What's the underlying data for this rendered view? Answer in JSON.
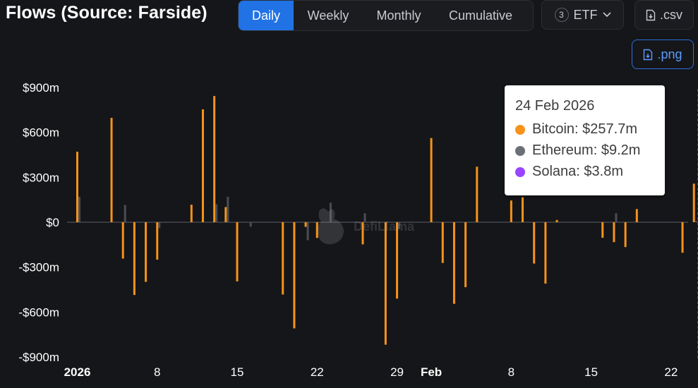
{
  "header": {
    "title": "Flows (Source: Farside)",
    "tabs": [
      {
        "label": "Daily",
        "active": true
      },
      {
        "label": "Weekly",
        "active": false
      },
      {
        "label": "Monthly",
        "active": false
      },
      {
        "label": "Cumulative",
        "active": false
      }
    ],
    "etf_count": "3",
    "etf_label": "ETF",
    "csv_label": ".csv",
    "png_label": ".png"
  },
  "tooltip": {
    "date": "24 Feb 2026",
    "rows": [
      {
        "label": "Bitcoin: $257.7m",
        "color": "#f7931a"
      },
      {
        "label": "Ethereum: $9.2m",
        "color": "#6b6f76"
      },
      {
        "label": "Solana: $3.8m",
        "color": "#9945ff"
      }
    ]
  },
  "watermark": "DefiLlama",
  "colors": {
    "bitcoin": "#f7931a",
    "ethereum": "#4a4d54",
    "solana": "#9945ff",
    "accent": "#2172e5"
  },
  "chart_data": {
    "type": "bar",
    "title": "Flows (Source: Farside)",
    "ylim": [
      -900,
      900
    ],
    "y_ticks": [
      900,
      600,
      300,
      0,
      -300,
      -600,
      -900
    ],
    "y_tick_labels": [
      "$900m",
      "$600m",
      "$300m",
      "$0",
      "-$300m",
      "-$600m",
      "-$900m"
    ],
    "x_tick_labels": [
      {
        "day": 1,
        "label": "2026",
        "bold": true
      },
      {
        "day": 8,
        "label": "8",
        "bold": false
      },
      {
        "day": 15,
        "label": "15",
        "bold": false
      },
      {
        "day": 22,
        "label": "22",
        "bold": false
      },
      {
        "day": 29,
        "label": "29",
        "bold": false
      },
      {
        "day": 32,
        "label": "Feb",
        "bold": true
      },
      {
        "day": 39,
        "label": "8",
        "bold": false
      },
      {
        "day": 46,
        "label": "15",
        "bold": false
      },
      {
        "day": 53,
        "label": "22",
        "bold": false
      }
    ],
    "x_range": [
      -0.5,
      55.5
    ],
    "hover_day": 55,
    "series": [
      {
        "name": "Bitcoin",
        "points": [
          {
            "day": 1,
            "value": 471
          },
          {
            "day": 4,
            "value": 697
          },
          {
            "day": 5,
            "value": -243
          },
          {
            "day": 6,
            "value": -486
          },
          {
            "day": 7,
            "value": -398
          },
          {
            "day": 8,
            "value": -250
          },
          {
            "day": 11,
            "value": 117
          },
          {
            "day": 12,
            "value": 754
          },
          {
            "day": 13,
            "value": 843
          },
          {
            "day": 14,
            "value": 101
          },
          {
            "day": 15,
            "value": -395
          },
          {
            "day": 19,
            "value": -483
          },
          {
            "day": 20,
            "value": -709
          },
          {
            "day": 21,
            "value": -31
          },
          {
            "day": 22,
            "value": -105
          },
          {
            "day": 26,
            "value": -148
          },
          {
            "day": 28,
            "value": -818
          },
          {
            "day": 29,
            "value": -510
          },
          {
            "day": 32,
            "value": 562
          },
          {
            "day": 33,
            "value": -272
          },
          {
            "day": 34,
            "value": -545
          },
          {
            "day": 35,
            "value": -434
          },
          {
            "day": 36,
            "value": 371
          },
          {
            "day": 39,
            "value": 145
          },
          {
            "day": 40,
            "value": 167
          },
          {
            "day": 41,
            "value": -276
          },
          {
            "day": 42,
            "value": -410
          },
          {
            "day": 43,
            "value": 15
          },
          {
            "day": 47,
            "value": -104
          },
          {
            "day": 48,
            "value": -133
          },
          {
            "day": 49,
            "value": -166
          },
          {
            "day": 50,
            "value": 88
          },
          {
            "day": 54,
            "value": -204
          },
          {
            "day": 55,
            "value": 257.7
          }
        ]
      },
      {
        "name": "Ethereum",
        "points": [
          {
            "day": 1,
            "value": 170
          },
          {
            "day": 5,
            "value": 115
          },
          {
            "day": 8,
            "value": -40
          },
          {
            "day": 13,
            "value": 120
          },
          {
            "day": 14,
            "value": 170
          },
          {
            "day": 16,
            "value": -30
          },
          {
            "day": 21,
            "value": -120
          },
          {
            "day": 23,
            "value": 130
          },
          {
            "day": 26,
            "value": 60
          },
          {
            "day": 29,
            "value": -45
          },
          {
            "day": 48,
            "value": 60
          },
          {
            "day": 55,
            "value": 9.2
          }
        ]
      },
      {
        "name": "Solana",
        "points": [
          {
            "day": 55,
            "value": 3.8
          }
        ]
      }
    ]
  }
}
